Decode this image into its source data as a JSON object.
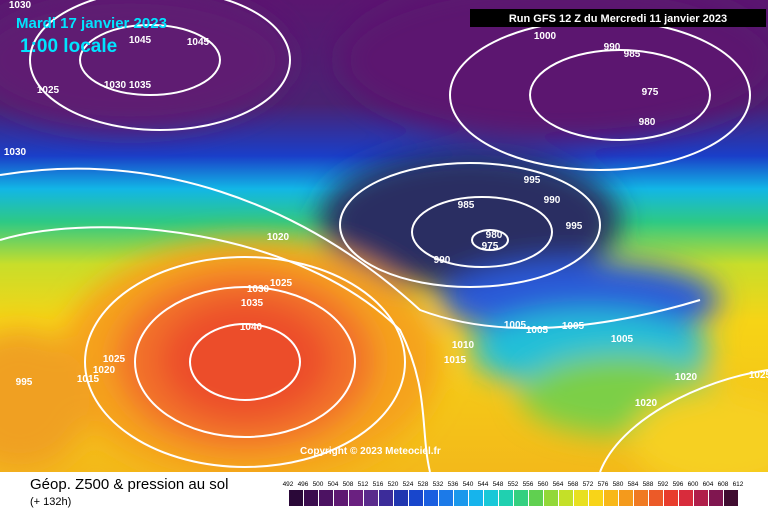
{
  "header": {
    "date": "Mardi 17 janvier 2023",
    "time": "1:00 locale",
    "run": "Run GFS 12 Z du Mercredi 11 janvier 2023"
  },
  "copyright": "Copyright © 2023 Meteociel.fr",
  "footer": {
    "title": "Géop. Z500 & pression au sol",
    "lead": "(+ 132h)"
  },
  "legend": {
    "labels": [
      "492",
      "496",
      "500",
      "504",
      "508",
      "512",
      "516",
      "520",
      "524",
      "528",
      "532",
      "536",
      "540",
      "544",
      "548",
      "552",
      "556",
      "560",
      "564",
      "568",
      "572",
      "576",
      "580",
      "584",
      "588",
      "592",
      "596",
      "600",
      "604",
      "608",
      "612"
    ]
  },
  "isobar_labels": [
    "1030",
    "1045",
    "1045",
    "1030",
    "1035",
    "1025",
    "1030",
    "1000",
    "990",
    "985",
    "975",
    "980",
    "995",
    "990",
    "985",
    "995",
    "980",
    "975",
    "990",
    "1020",
    "1025",
    "1030",
    "1035",
    "1040",
    "1005",
    "1005",
    "1005",
    "1005",
    "1010",
    "1015",
    "1025",
    "1020",
    "1015",
    "995",
    "1020",
    "1020",
    "1025"
  ]
}
